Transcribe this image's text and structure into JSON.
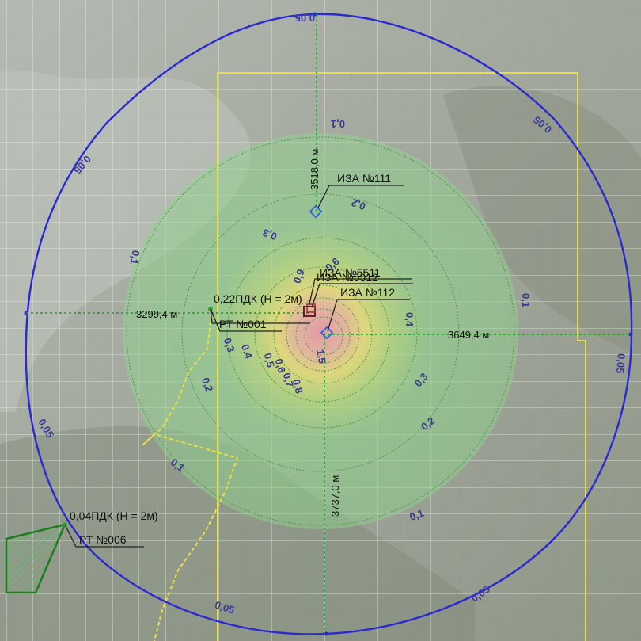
{
  "outer_contour": {
    "labels": [
      "0,05",
      "0,05",
      "0,05",
      "0,05",
      "0,05",
      "0,05",
      "0,05"
    ]
  },
  "inner_contours": {
    "labels": [
      "0,1",
      "0,1",
      "0,1",
      "0,1",
      "0,1",
      "0,2",
      "0,2",
      "0,2",
      "0,3",
      "0,3",
      "0,3",
      "0,4",
      "0,4",
      "0,5",
      "0,6",
      "0,7",
      "0,8",
      "0,9",
      "0,6",
      "1,5"
    ]
  },
  "distances": {
    "north": "3518,0 м",
    "west": "3299,4 м",
    "east": "3649,4 м",
    "south": "3737,0 м"
  },
  "sources": {
    "iza111": "ИЗА №111",
    "iza5511": "ИЗА №5511",
    "iza5512": "ИЗА №5512",
    "iza112": "ИЗА №112"
  },
  "points": {
    "rt001_value": "0,22ПДК (Н = 2м)",
    "rt001_name": "РТ №001",
    "rt006_value": "0,04ПДК (Н = 2м)",
    "rt006_name": "РТ №006"
  },
  "colors": {
    "outer_contour": "#2a2ad0",
    "boundary": "#e8e040",
    "axis": "#1f9a1f",
    "plume_outer": "#7ed37e",
    "plume_mid": "#e8e070",
    "plume_core": "#e59aa6"
  }
}
